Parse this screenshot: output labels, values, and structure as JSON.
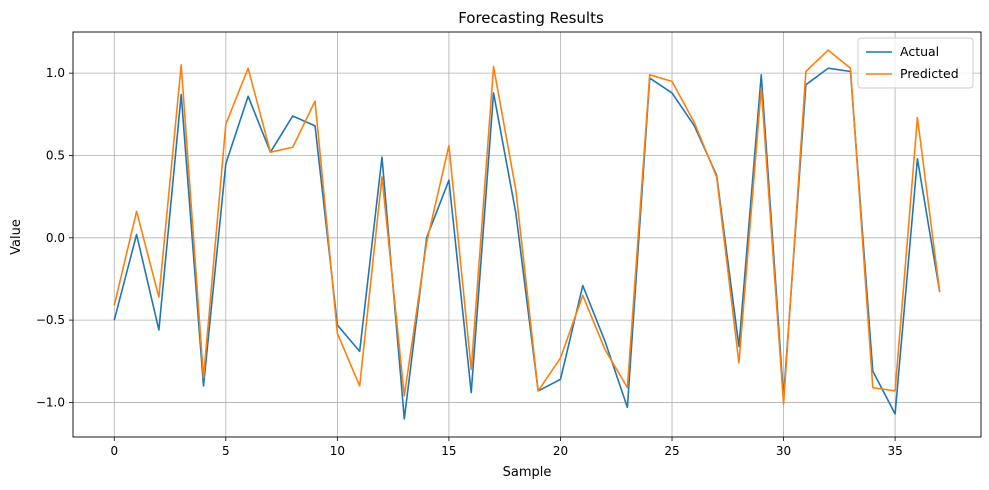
{
  "chart_data": {
    "type": "line",
    "title": "Forecasting Results",
    "xlabel": "Sample",
    "ylabel": "Value",
    "xlim": [
      -1.85,
      38.85
    ],
    "ylim": [
      -1.21,
      1.25
    ],
    "xticks": [
      0,
      5,
      10,
      15,
      20,
      25,
      30,
      35
    ],
    "yticks": [
      -1.0,
      -0.5,
      0.0,
      0.5,
      1.0
    ],
    "xtick_labels": [
      "0",
      "5",
      "10",
      "15",
      "20",
      "25",
      "30",
      "35"
    ],
    "ytick_labels": [
      "−1.0",
      "−0.5",
      "0.0",
      "0.5",
      "1.0"
    ],
    "grid": true,
    "legend_position": "top-right",
    "x": [
      0,
      1,
      2,
      3,
      4,
      5,
      6,
      7,
      8,
      9,
      10,
      11,
      12,
      13,
      14,
      15,
      16,
      17,
      18,
      19,
      20,
      21,
      22,
      23,
      24,
      25,
      26,
      27,
      28,
      29,
      30,
      31,
      32,
      33,
      34,
      35,
      36,
      37
    ],
    "series": [
      {
        "name": "Actual",
        "color": "#1f77b4",
        "values": [
          -0.5,
          0.02,
          -0.56,
          0.87,
          -0.9,
          0.45,
          0.86,
          0.52,
          0.74,
          0.68,
          -0.53,
          -0.69,
          0.49,
          -1.1,
          0.0,
          0.35,
          -0.94,
          0.88,
          0.15,
          -0.93,
          -0.86,
          -0.29,
          -0.63,
          -1.03,
          0.97,
          0.88,
          0.68,
          0.38,
          -0.66,
          0.99,
          -0.97,
          0.93,
          1.03,
          1.01,
          -0.81,
          -1.07,
          0.48,
          -0.33
        ]
      },
      {
        "name": "Predicted",
        "color": "#ff7f0e",
        "values": [
          -0.41,
          0.16,
          -0.36,
          1.05,
          -0.85,
          0.69,
          1.03,
          0.52,
          0.55,
          0.83,
          -0.58,
          -0.9,
          0.37,
          -0.96,
          -0.03,
          0.56,
          -0.8,
          1.04,
          0.29,
          -0.93,
          -0.73,
          -0.35,
          -0.68,
          -0.91,
          0.99,
          0.95,
          0.7,
          0.37,
          -0.76,
          0.91,
          -1.01,
          1.01,
          1.14,
          1.03,
          -0.91,
          -0.93,
          0.73,
          -0.33
        ]
      }
    ]
  }
}
